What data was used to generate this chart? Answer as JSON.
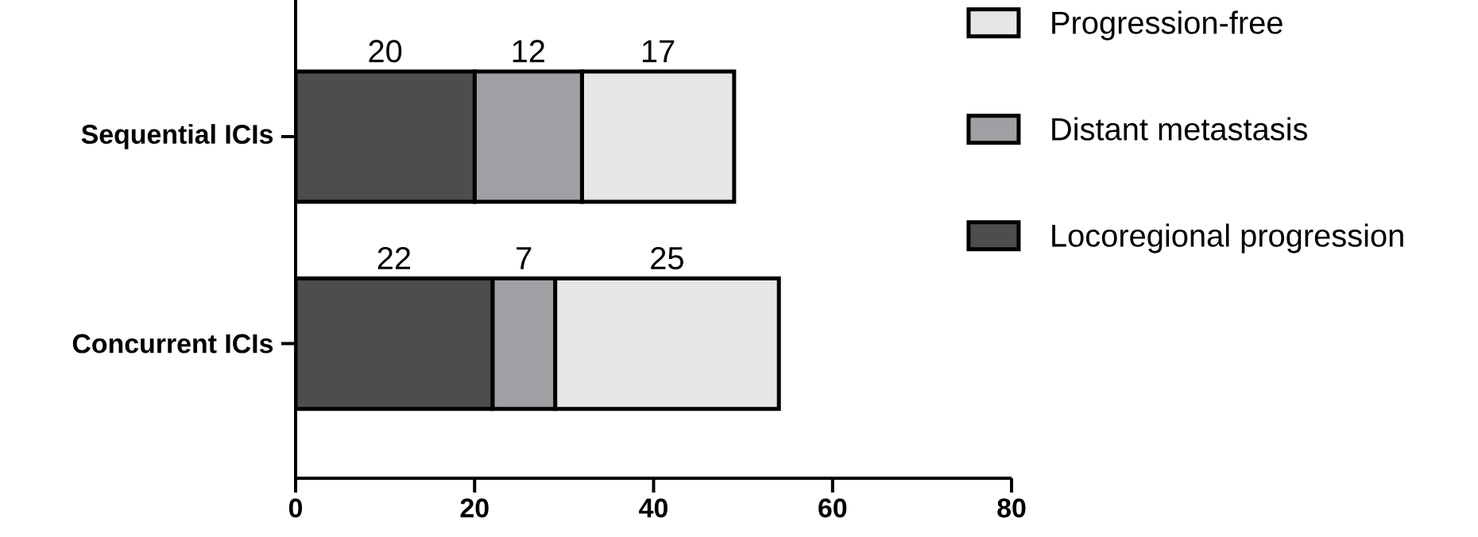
{
  "chart_data": {
    "type": "bar",
    "orientation": "horizontal",
    "stacked": true,
    "categories": [
      "Sequential ICIs",
      "Concurrent ICIs"
    ],
    "series": [
      {
        "name": "Locoregional progression",
        "color": "#4d4d4d",
        "values": [
          20,
          22
        ]
      },
      {
        "name": "Distant metastasis",
        "color": "#a0a0a4",
        "values": [
          12,
          7
        ]
      },
      {
        "name": "Progression-free",
        "color": "#e6e6e6",
        "values": [
          17,
          25
        ]
      }
    ],
    "xlim": [
      0,
      80
    ],
    "xticks": [
      0,
      20,
      40,
      60,
      80
    ],
    "data_labels": true,
    "legend": "top right"
  }
}
